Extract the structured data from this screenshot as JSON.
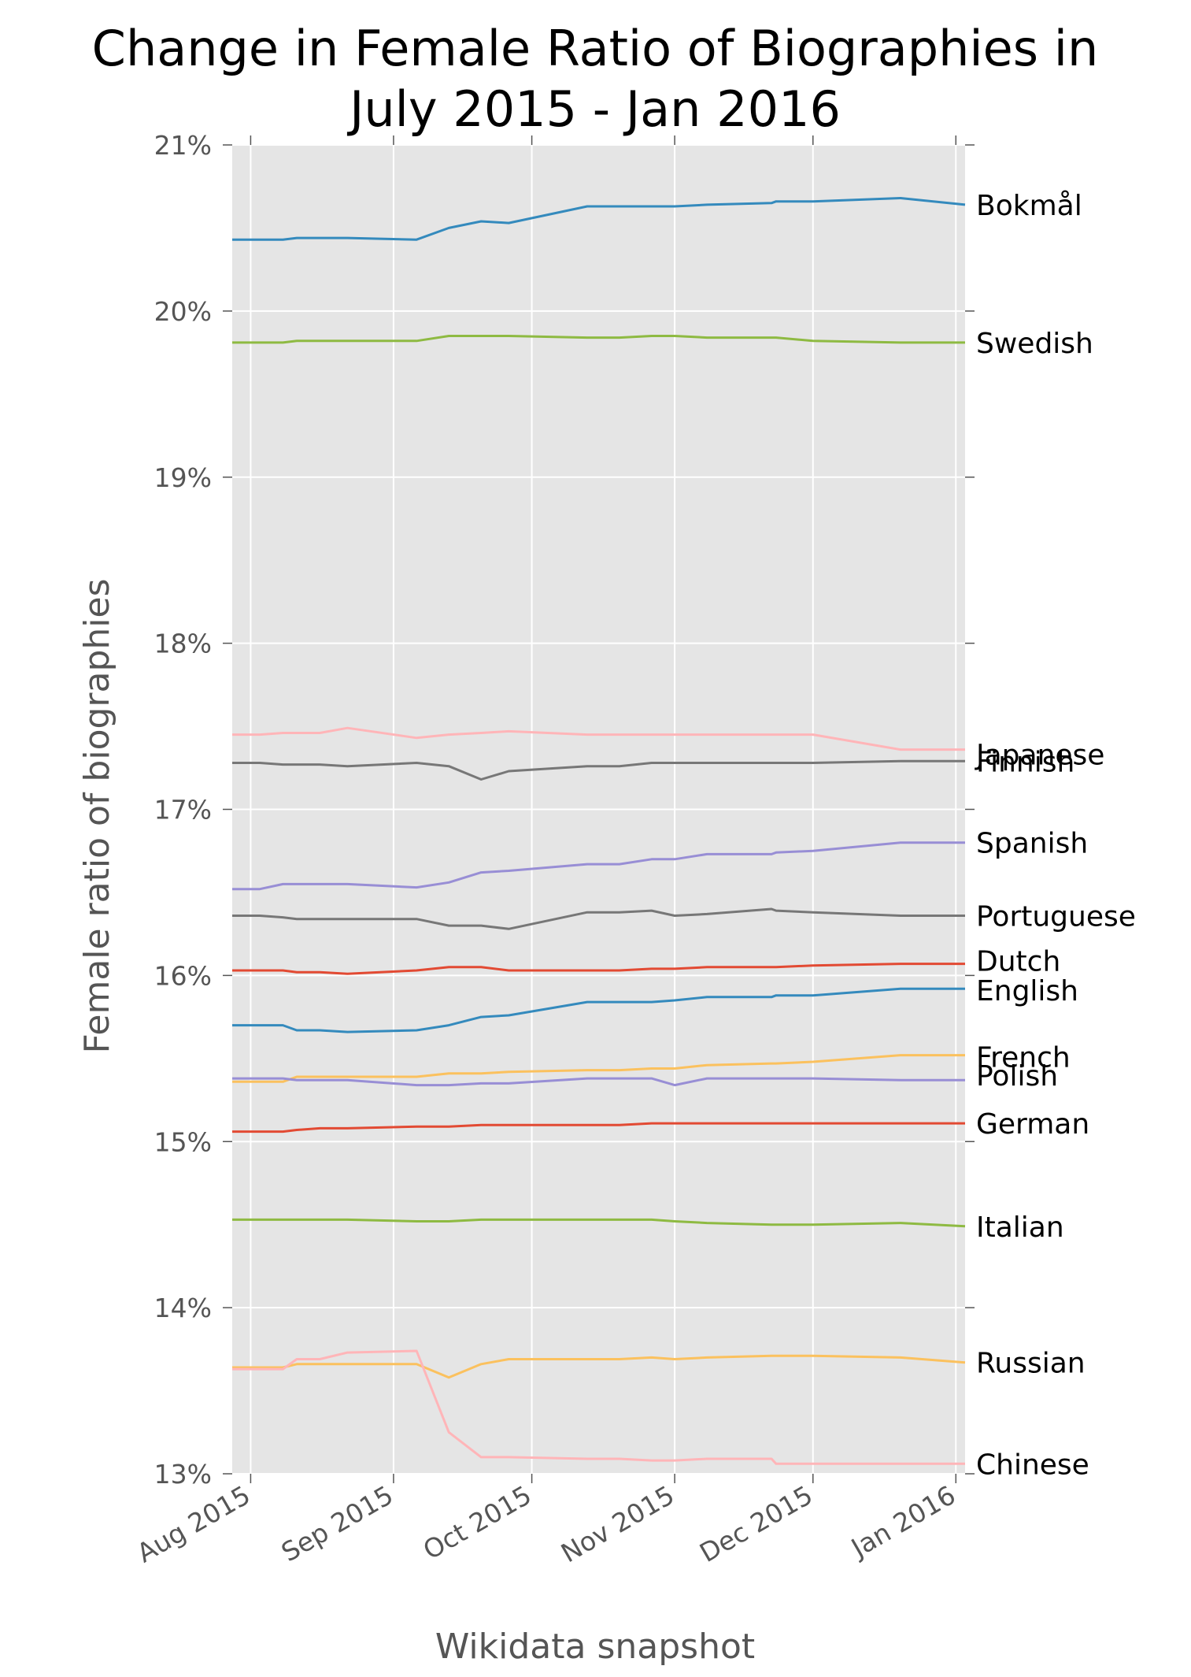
{
  "chart_data": {
    "type": "line",
    "title_lines": [
      "Change in Female Ratio of Biographies in",
      "July 2015 - Jan 2016"
    ],
    "xlabel": "Wikidata snapshot",
    "ylabel": "Female ratio of biographies",
    "xlim": [
      "2015-07-28",
      "2016-01-03"
    ],
    "ylim": [
      13,
      21
    ],
    "yticks": [
      13,
      14,
      15,
      16,
      17,
      18,
      19,
      20,
      21
    ],
    "ytick_labels": [
      "13%",
      "14%",
      "15%",
      "16%",
      "17%",
      "18%",
      "19%",
      "20%",
      "21%"
    ],
    "xticks": [
      "2015-08-01",
      "2015-09-01",
      "2015-10-01",
      "2015-11-01",
      "2015-12-01",
      "2016-01-01"
    ],
    "xtick_labels": [
      "Aug 2015",
      "Sep 2015",
      "Oct 2015",
      "Nov 2015",
      "Dec 2015",
      "Jan 2016"
    ],
    "grid": true,
    "background": "#e5e5e5",
    "x": [
      "2015-07-28",
      "2015-08-03",
      "2015-08-08",
      "2015-08-11",
      "2015-08-16",
      "2015-08-22",
      "2015-09-06",
      "2015-09-13",
      "2015-09-20",
      "2015-09-26",
      "2015-10-13",
      "2015-10-20",
      "2015-10-27",
      "2015-11-01",
      "2015-11-08",
      "2015-11-22",
      "2015-11-23",
      "2015-12-01",
      "2015-12-20",
      "2016-01-03"
    ],
    "series": [
      {
        "name": "Bokmål",
        "color": "#348abd",
        "values": [
          20.43,
          20.43,
          20.43,
          20.44,
          20.44,
          20.44,
          20.43,
          20.5,
          20.54,
          20.53,
          20.63,
          20.63,
          20.63,
          20.63,
          20.64,
          20.65,
          20.66,
          20.66,
          20.68,
          20.64
        ]
      },
      {
        "name": "Swedish",
        "color": "#8eba42",
        "values": [
          19.81,
          19.81,
          19.81,
          19.82,
          19.82,
          19.82,
          19.82,
          19.85,
          19.85,
          19.85,
          19.84,
          19.84,
          19.85,
          19.85,
          19.84,
          19.84,
          19.84,
          19.82,
          19.81,
          19.81
        ]
      },
      {
        "name": "Japanese",
        "color": "#ffb5b8",
        "values": [
          17.45,
          17.45,
          17.46,
          17.46,
          17.46,
          17.49,
          17.43,
          17.45,
          17.46,
          17.47,
          17.45,
          17.45,
          17.45,
          17.45,
          17.45,
          17.45,
          17.45,
          17.45,
          17.36,
          17.36
        ]
      },
      {
        "name": "Finnish",
        "color": "#777777",
        "values": [
          17.28,
          17.28,
          17.27,
          17.27,
          17.27,
          17.26,
          17.28,
          17.26,
          17.18,
          17.23,
          17.26,
          17.26,
          17.28,
          17.28,
          17.28,
          17.28,
          17.28,
          17.28,
          17.29,
          17.29
        ]
      },
      {
        "name": "Spanish",
        "color": "#988ed5",
        "values": [
          16.52,
          16.52,
          16.55,
          16.55,
          16.55,
          16.55,
          16.53,
          16.56,
          16.62,
          16.63,
          16.67,
          16.67,
          16.7,
          16.7,
          16.73,
          16.73,
          16.74,
          16.75,
          16.8,
          16.8
        ]
      },
      {
        "name": "Portuguese",
        "color": "#777777",
        "values": [
          16.36,
          16.36,
          16.35,
          16.34,
          16.34,
          16.34,
          16.34,
          16.3,
          16.3,
          16.28,
          16.38,
          16.38,
          16.39,
          16.36,
          16.37,
          16.4,
          16.39,
          16.38,
          16.36,
          16.36
        ]
      },
      {
        "name": "Dutch",
        "color": "#e24a33",
        "values": [
          16.03,
          16.03,
          16.03,
          16.02,
          16.02,
          16.01,
          16.03,
          16.05,
          16.05,
          16.03,
          16.03,
          16.03,
          16.04,
          16.04,
          16.05,
          16.05,
          16.05,
          16.06,
          16.07,
          16.07
        ]
      },
      {
        "name": "English",
        "color": "#348abd",
        "values": [
          15.7,
          15.7,
          15.7,
          15.67,
          15.67,
          15.66,
          15.67,
          15.7,
          15.75,
          15.76,
          15.84,
          15.84,
          15.84,
          15.85,
          15.87,
          15.87,
          15.88,
          15.88,
          15.92,
          15.92
        ]
      },
      {
        "name": "French",
        "color": "#fbc15e",
        "values": [
          15.36,
          15.36,
          15.36,
          15.39,
          15.39,
          15.39,
          15.39,
          15.41,
          15.41,
          15.42,
          15.43,
          15.43,
          15.44,
          15.44,
          15.46,
          15.47,
          15.47,
          15.48,
          15.52,
          15.52
        ]
      },
      {
        "name": "Polish",
        "color": "#988ed5",
        "values": [
          15.38,
          15.38,
          15.38,
          15.37,
          15.37,
          15.37,
          15.34,
          15.34,
          15.35,
          15.35,
          15.38,
          15.38,
          15.38,
          15.34,
          15.38,
          15.38,
          15.38,
          15.38,
          15.37,
          15.37
        ]
      },
      {
        "name": "German",
        "color": "#e24a33",
        "values": [
          15.06,
          15.06,
          15.06,
          15.07,
          15.08,
          15.08,
          15.09,
          15.09,
          15.1,
          15.1,
          15.1,
          15.1,
          15.11,
          15.11,
          15.11,
          15.11,
          15.11,
          15.11,
          15.11,
          15.11
        ]
      },
      {
        "name": "Italian",
        "color": "#8eba42",
        "values": [
          14.53,
          14.53,
          14.53,
          14.53,
          14.53,
          14.53,
          14.52,
          14.52,
          14.53,
          14.53,
          14.53,
          14.53,
          14.53,
          14.52,
          14.51,
          14.5,
          14.5,
          14.5,
          14.51,
          14.49
        ]
      },
      {
        "name": "Russian",
        "color": "#fbc15e",
        "values": [
          13.64,
          13.64,
          13.64,
          13.66,
          13.66,
          13.66,
          13.66,
          13.58,
          13.66,
          13.69,
          13.69,
          13.69,
          13.7,
          13.69,
          13.7,
          13.71,
          13.71,
          13.71,
          13.7,
          13.67
        ]
      },
      {
        "name": "Chinese",
        "color": "#ffb5b8",
        "values": [
          13.63,
          13.63,
          13.63,
          13.69,
          13.69,
          13.73,
          13.74,
          13.25,
          13.1,
          13.1,
          13.09,
          13.09,
          13.08,
          13.08,
          13.09,
          13.09,
          13.06,
          13.06,
          13.06,
          13.06
        ]
      }
    ]
  }
}
